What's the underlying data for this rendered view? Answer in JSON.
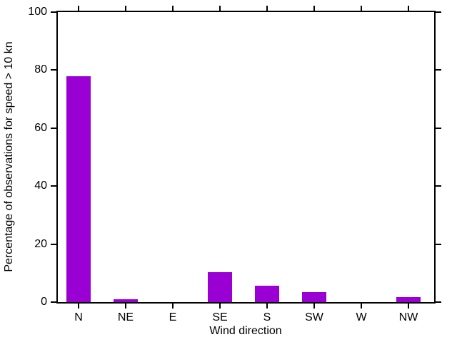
{
  "chart_data": {
    "type": "bar",
    "title": "",
    "categories": [
      "N",
      "NE",
      "E",
      "SE",
      "S",
      "SW",
      "W",
      "NW"
    ],
    "values": [
      78,
      1,
      0,
      10.4,
      5.6,
      3.5,
      0,
      1.8
    ],
    "xlabel": "Wind direction",
    "ylabel": "Percentage of observations for speed > 10 kn",
    "ylim": [
      0,
      100
    ],
    "yticks": [
      0,
      20,
      40,
      60,
      80,
      100
    ],
    "bar_color": "#9a00d4",
    "axis_color": "#000000",
    "background_color": "#ffffff",
    "grid": false,
    "legend": "none",
    "tick_direction": "out",
    "ticks_mirrored": true
  }
}
